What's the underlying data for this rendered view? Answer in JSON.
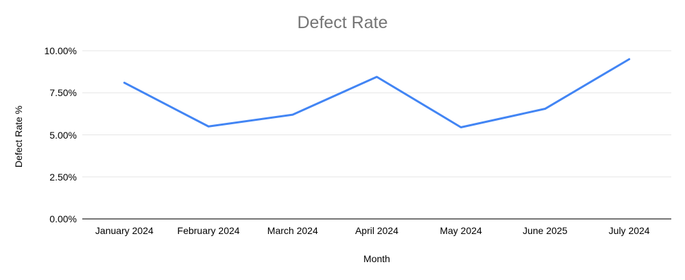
{
  "chart_data": {
    "type": "line",
    "title": "Defect Rate",
    "xlabel": "Month",
    "ylabel": "Defect Rate %",
    "categories": [
      "January 2024",
      "February 2024",
      "March 2024",
      "April 2024",
      "May 2024",
      "June 2025",
      "July 2024"
    ],
    "values": [
      8.1,
      5.5,
      6.2,
      8.45,
      5.45,
      6.55,
      9.5
    ],
    "ylim": [
      0,
      10
    ],
    "y_ticks": [
      {
        "value": 10,
        "label": "10.00%"
      },
      {
        "value": 7.5,
        "label": "7.50%"
      },
      {
        "value": 5,
        "label": "5.00%"
      },
      {
        "value": 2.5,
        "label": "2.50%"
      },
      {
        "value": 0,
        "label": "0.00%"
      }
    ],
    "grid": true,
    "legend": "none"
  },
  "colors": {
    "series_line": "#4285f4",
    "gridline": "#e6e6e6",
    "axis_baseline": "#757575",
    "title_text": "#757575",
    "tick_text": "#000000",
    "background": "#ffffff"
  }
}
